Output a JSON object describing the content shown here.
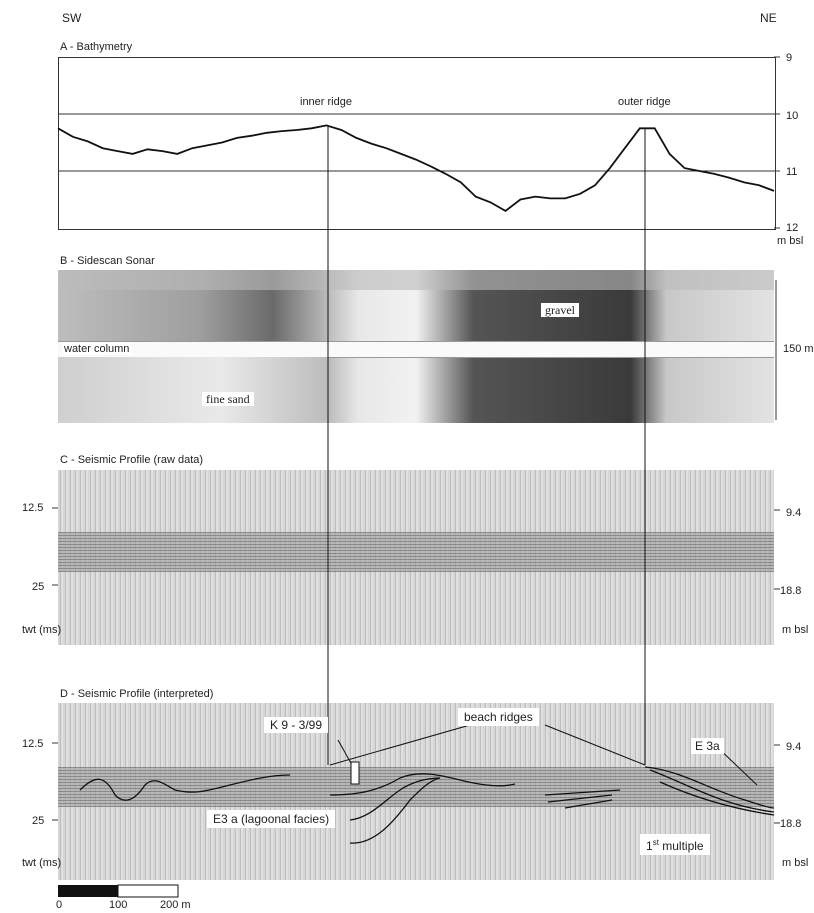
{
  "header": {
    "left": "SW",
    "right": "NE"
  },
  "panel_a": {
    "title": "A - Bathymetry",
    "labels": {
      "inner": "inner ridge",
      "outer": "outer ridge"
    },
    "ticks": [
      "9",
      "10",
      "11",
      "12"
    ],
    "unit": "m bsl"
  },
  "panel_b": {
    "title": "B - Sidescan Sonar",
    "labels": {
      "gravel": "gravel",
      "water": "water column",
      "sand": "fine sand",
      "width": "150 m"
    }
  },
  "panel_c": {
    "title": "C - Seismic Profile (raw data)",
    "left_ticks": [
      "12.5",
      "25"
    ],
    "right_ticks": [
      "9.4",
      "18.8"
    ],
    "left_unit": "twt (ms)",
    "right_unit": "m bsl"
  },
  "panel_d": {
    "title": "D - Seismic Profile (interpreted)",
    "left_ticks": [
      "12.5",
      "25"
    ],
    "right_ticks": [
      "9.4",
      "18.8"
    ],
    "left_unit": "twt (ms)",
    "right_unit": "m bsl",
    "labels": {
      "core": "K 9 - 3/99",
      "beach": "beach ridges",
      "e3a_right": "E 3a",
      "lagoonal": "E3 a (lagoonal facies)",
      "multiple_base": "1",
      "multiple_sup": "st",
      "multiple_rest": " multiple"
    }
  },
  "scale": {
    "ticks": [
      "0",
      "100",
      "200 m"
    ]
  },
  "colors": {
    "line": "#111111",
    "seismic_bg": "#cfcfcf",
    "sonar_dark": "#3a3a3a"
  },
  "chart_data": {
    "type": "line",
    "title": "A - Bathymetry",
    "ylabel": "m bsl",
    "ylim": [
      12,
      9
    ],
    "x": [
      0,
      25,
      50,
      75,
      100,
      125,
      150,
      175,
      200,
      225,
      250,
      275,
      300,
      325,
      350,
      375,
      400,
      425,
      450,
      475,
      500,
      525,
      550,
      575,
      600,
      625,
      650,
      675,
      700,
      725,
      750,
      775,
      800,
      825,
      850,
      875,
      900,
      925,
      950,
      975,
      1000,
      1025,
      1050,
      1075,
      1100,
      1125,
      1150,
      1175,
      1200
    ],
    "series": [
      {
        "values": [
          10.25,
          10.4,
          10.48,
          10.6,
          10.65,
          10.7,
          10.62,
          10.65,
          10.7,
          10.6,
          10.55,
          10.5,
          10.42,
          10.38,
          10.33,
          10.3,
          10.28,
          10.25,
          10.2,
          10.28,
          10.42,
          10.52,
          10.6,
          10.7,
          10.8,
          10.92,
          11.05,
          11.2,
          11.45,
          11.55,
          11.7,
          11.5,
          11.45,
          11.48,
          11.48,
          11.4,
          11.25,
          10.95,
          10.6,
          10.25,
          10.25,
          10.7,
          10.95,
          11.0,
          11.05,
          11.12,
          11.2,
          11.25,
          11.35
        ]
      }
    ]
  }
}
